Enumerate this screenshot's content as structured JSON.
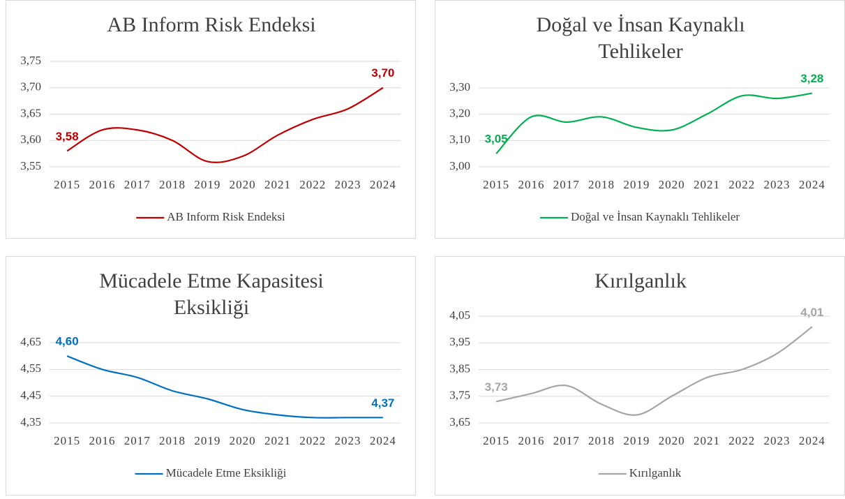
{
  "chart_data": [
    {
      "type": "line",
      "title": "AB Inform Risk Endeksi",
      "categories": [
        "2015",
        "2016",
        "2017",
        "2018",
        "2019",
        "2020",
        "2021",
        "2022",
        "2023",
        "2024"
      ],
      "series": [
        {
          "name": "AB Inform Risk Endeksi",
          "color": "#c00000",
          "values": [
            3.58,
            3.62,
            3.62,
            3.6,
            3.56,
            3.57,
            3.61,
            3.64,
            3.66,
            3.7
          ],
          "value_labels": [
            "3,58",
            null,
            null,
            null,
            null,
            null,
            null,
            null,
            null,
            "3,70"
          ]
        }
      ],
      "ylim": [
        3.55,
        3.75
      ],
      "yticks": [
        {
          "value": 3.55,
          "label": "3,55"
        },
        {
          "value": 3.6,
          "label": "3,60"
        },
        {
          "value": 3.65,
          "label": "3,65"
        },
        {
          "value": 3.7,
          "label": "3,70"
        },
        {
          "value": 3.75,
          "label": "3,75"
        }
      ],
      "grid": true,
      "legend": "bottom"
    },
    {
      "type": "line",
      "title": "Doğal ve İnsan Kaynaklı Tehlikeler",
      "categories": [
        "2015",
        "2016",
        "2017",
        "2018",
        "2019",
        "2020",
        "2021",
        "2022",
        "2023",
        "2024"
      ],
      "series": [
        {
          "name": "Doğal ve İnsan Kaynaklı Tehlikeler",
          "color": "#00b050",
          "values": [
            3.05,
            3.19,
            3.17,
            3.19,
            3.15,
            3.14,
            3.2,
            3.27,
            3.26,
            3.28
          ],
          "value_labels": [
            "3,05",
            null,
            null,
            null,
            null,
            null,
            null,
            null,
            null,
            "3,28"
          ]
        }
      ],
      "ylim": [
        3.0,
        3.3
      ],
      "yticks": [
        {
          "value": 3.0,
          "label": "3,00"
        },
        {
          "value": 3.1,
          "label": "3,10"
        },
        {
          "value": 3.2,
          "label": "3,20"
        },
        {
          "value": 3.3,
          "label": "3,30"
        }
      ],
      "grid": true,
      "legend": "bottom"
    },
    {
      "type": "line",
      "title": "Mücadele Etme Kapasitesi Eksikliği",
      "categories": [
        "2015",
        "2016",
        "2017",
        "2018",
        "2019",
        "2020",
        "2021",
        "2022",
        "2023",
        "2024"
      ],
      "series": [
        {
          "name": "Mücadele Etme Eksikliği",
          "color": "#0070c0",
          "values": [
            4.6,
            4.55,
            4.52,
            4.47,
            4.44,
            4.4,
            4.38,
            4.37,
            4.37,
            4.37
          ],
          "value_labels": [
            "4,60",
            null,
            null,
            null,
            null,
            null,
            null,
            null,
            null,
            "4,37"
          ]
        }
      ],
      "ylim": [
        4.35,
        4.65
      ],
      "yticks": [
        {
          "value": 4.35,
          "label": "4,35"
        },
        {
          "value": 4.45,
          "label": "4,45"
        },
        {
          "value": 4.55,
          "label": "4,55"
        },
        {
          "value": 4.65,
          "label": "4,65"
        }
      ],
      "grid": true,
      "legend": "bottom"
    },
    {
      "type": "line",
      "title": "Kırılganlık",
      "categories": [
        "2015",
        "2016",
        "2017",
        "2018",
        "2019",
        "2020",
        "2021",
        "2022",
        "2023",
        "2024"
      ],
      "series": [
        {
          "name": "Kırılganlık",
          "color": "#a5a5a5",
          "values": [
            3.73,
            3.76,
            3.79,
            3.72,
            3.68,
            3.75,
            3.82,
            3.85,
            3.91,
            4.01
          ],
          "value_labels": [
            "3,73",
            null,
            null,
            null,
            null,
            null,
            null,
            null,
            null,
            "4,01"
          ]
        }
      ],
      "ylim": [
        3.65,
        4.05
      ],
      "yticks": [
        {
          "value": 3.65,
          "label": "3,65"
        },
        {
          "value": 3.75,
          "label": "3,75"
        },
        {
          "value": 3.85,
          "label": "3,85"
        },
        {
          "value": 3.95,
          "label": "3,95"
        },
        {
          "value": 4.05,
          "label": "4,05"
        }
      ],
      "grid": true,
      "legend": "bottom"
    }
  ]
}
